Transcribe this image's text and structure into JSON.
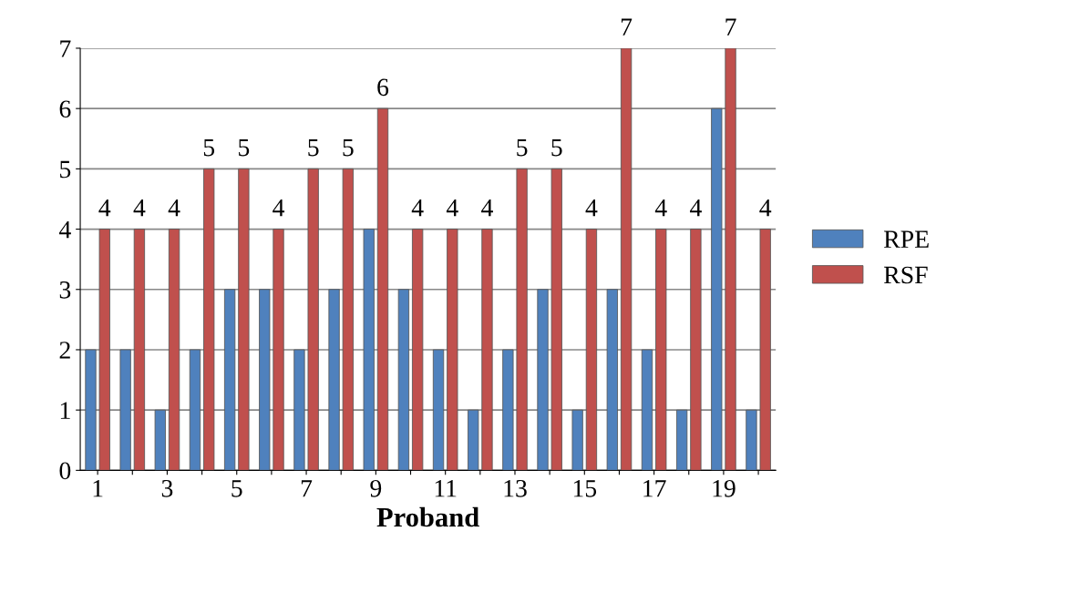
{
  "chart_data": {
    "type": "bar",
    "xlabel": "Proband",
    "categories": [
      "1",
      null,
      "3",
      null,
      "5",
      null,
      "7",
      null,
      "9",
      null,
      "11",
      null,
      "13",
      null,
      "15",
      null,
      "17",
      null,
      "19",
      null
    ],
    "series": [
      {
        "name": "RPE",
        "color": "#4f81bd",
        "values": [
          2,
          2,
          1,
          2,
          3,
          3,
          2,
          3,
          4,
          3,
          2,
          1,
          2,
          3,
          1,
          3,
          2,
          1,
          6,
          1
        ]
      },
      {
        "name": "RSF",
        "color": "#c0504d",
        "values": [
          4,
          4,
          4,
          5,
          5,
          4,
          5,
          5,
          6,
          4,
          4,
          4,
          5,
          5,
          4,
          7,
          4,
          4,
          7,
          4
        ],
        "value_labels": [
          "4",
          "4",
          "4",
          "5",
          "5",
          "4",
          "5",
          "5",
          "6",
          "4",
          "4",
          "4",
          "5",
          "5",
          "4",
          "7",
          "4",
          "4",
          "7",
          "4"
        ]
      }
    ],
    "ylim": [
      0,
      7
    ],
    "yticks": [
      0,
      1,
      2,
      3,
      4,
      5,
      6,
      7
    ],
    "grid": "y",
    "legend": "right"
  }
}
